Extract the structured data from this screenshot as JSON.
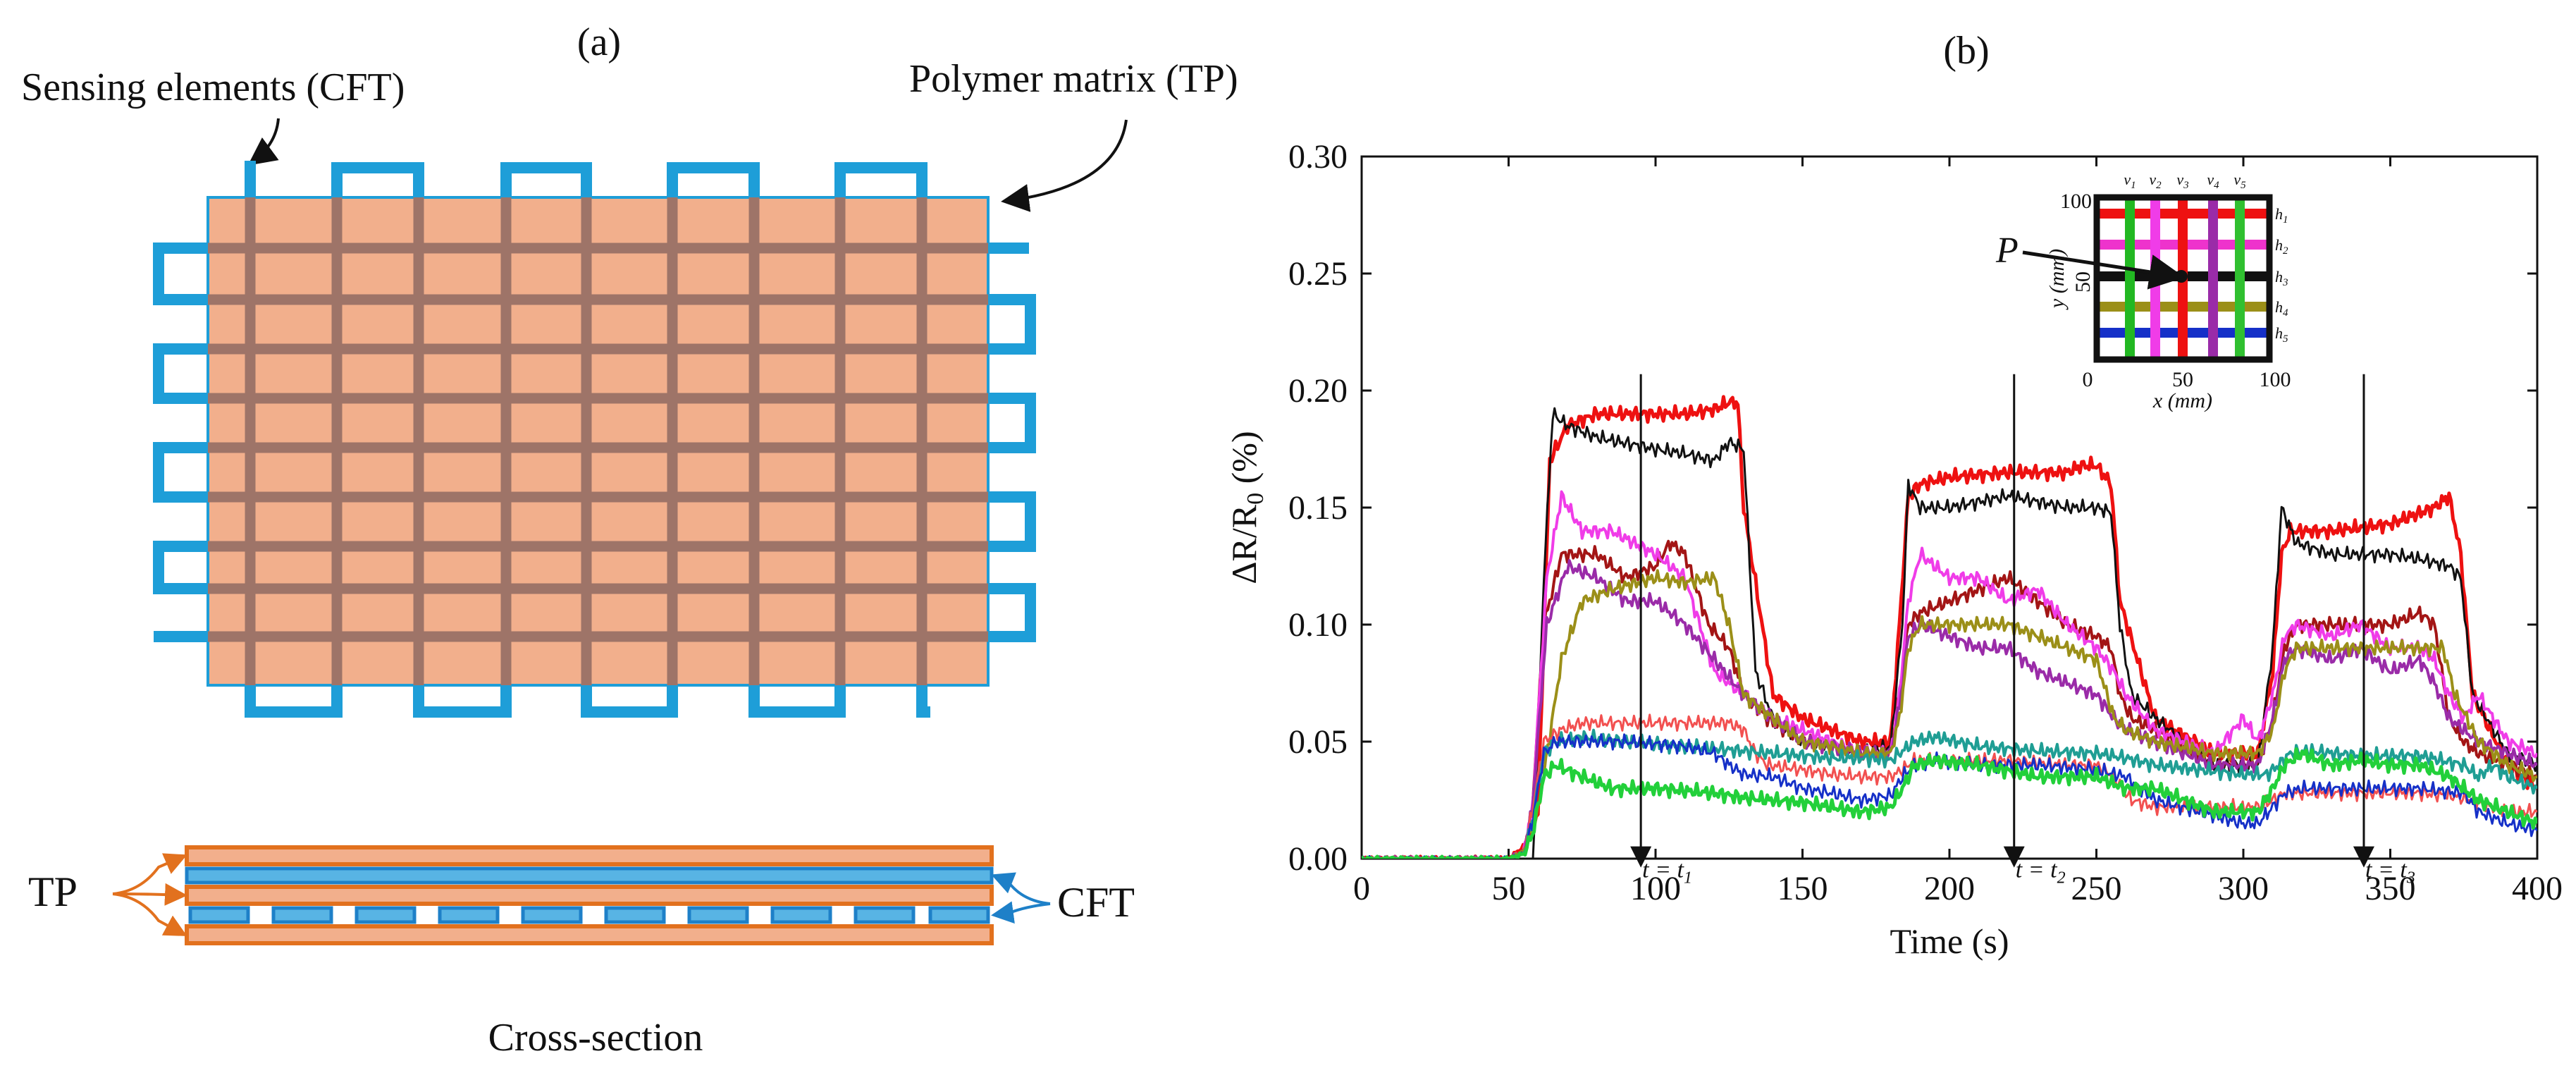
{
  "panel_a": {
    "label": "(a)",
    "annotation_cft": "Sensing elements (CFT)",
    "annotation_tp": "Polymer matrix (TP)",
    "cross_section_caption": "Cross-section",
    "cross_section_tp_label": "TP",
    "cross_section_cft_label": "CFT",
    "colors": {
      "matrix": "#F2AF8C",
      "cft": "#1E9ED8",
      "embedded_cft": "#9E7468",
      "tp_layer": "#E2711E"
    }
  },
  "panel_b": {
    "label": "(b)",
    "inset": {
      "pointer_label": "P",
      "v_labels": [
        {
          "base": "v",
          "sub": "1"
        },
        {
          "base": "v",
          "sub": "2"
        },
        {
          "base": "v",
          "sub": "3"
        },
        {
          "base": "v",
          "sub": "4"
        },
        {
          "base": "v",
          "sub": "5"
        }
      ],
      "h_labels": [
        {
          "base": "h",
          "sub": "1"
        },
        {
          "base": "h",
          "sub": "2"
        },
        {
          "base": "h",
          "sub": "3"
        },
        {
          "base": "h",
          "sub": "4"
        },
        {
          "base": "h",
          "sub": "5"
        }
      ],
      "x_ticks": [
        "0",
        "50",
        "100"
      ],
      "y_ticks": [
        "100",
        "50"
      ],
      "xlabel": "x (mm)",
      "ylabel": "y (mm)",
      "v_colors": [
        "#22B822",
        "#F03CE8",
        "#EE1111",
        "#9A2BA8",
        "#30C030"
      ],
      "h_colors": [
        "#EE1111",
        "#EE33CC",
        "#111111",
        "#9B8F18",
        "#1530C8"
      ]
    }
  },
  "chart_data": {
    "type": "line",
    "title": "",
    "xlabel": "Time (s)",
    "ylabel_main": "ΔR/R",
    "ylabel_sub": "0",
    "ylabel_suffix": " (%)",
    "xlim": [
      0,
      400
    ],
    "ylim": [
      0,
      0.3
    ],
    "xticks": [
      "0",
      "50",
      "100",
      "150",
      "200",
      "250",
      "300",
      "350",
      "400"
    ],
    "yticks": [
      "0.00",
      "0.05",
      "0.10",
      "0.15",
      "0.20",
      "0.25",
      "0.30"
    ],
    "annotations": [
      {
        "label": "t = t",
        "sub": "1",
        "x": 95
      },
      {
        "label": "t = t",
        "sub": "2",
        "x": 222
      },
      {
        "label": "t = t",
        "sub": "3",
        "x": 341
      }
    ],
    "series": [
      {
        "name": "red",
        "color": "#EE1111",
        "width": 5,
        "x": [
          0,
          50,
          55,
          60,
          64,
          70,
          80,
          100,
          110,
          120,
          125,
          128,
          130,
          140,
          150,
          160,
          170,
          180,
          183,
          186,
          190,
          200,
          220,
          240,
          245,
          250,
          255,
          258,
          270,
          290,
          305,
          310,
          313,
          316,
          320,
          330,
          350,
          365,
          370,
          374,
          378,
          390,
          400
        ],
        "y": [
          0,
          0,
          0.005,
          0.02,
          0.17,
          0.185,
          0.19,
          0.19,
          0.19,
          0.192,
          0.195,
          0.195,
          0.15,
          0.07,
          0.06,
          0.055,
          0.05,
          0.05,
          0.1,
          0.155,
          0.16,
          0.163,
          0.165,
          0.165,
          0.168,
          0.168,
          0.16,
          0.11,
          0.06,
          0.045,
          0.045,
          0.08,
          0.13,
          0.14,
          0.14,
          0.14,
          0.143,
          0.15,
          0.155,
          0.13,
          0.07,
          0.04,
          0.03
        ]
      },
      {
        "name": "black",
        "color": "#111111",
        "width": 3,
        "x": [
          0,
          50,
          55,
          58,
          62,
          65,
          70,
          80,
          100,
          110,
          120,
          125,
          130,
          134,
          140,
          150,
          170,
          180,
          184,
          186,
          190,
          200,
          220,
          240,
          250,
          255,
          258,
          262,
          270,
          290,
          305,
          310,
          313,
          318,
          330,
          350,
          360,
          370,
          374,
          378,
          390,
          400
        ],
        "y": [
          0,
          0,
          -0.002,
          -0.01,
          0.12,
          0.19,
          0.185,
          0.18,
          0.175,
          0.173,
          0.17,
          0.178,
          0.175,
          0.08,
          0.06,
          0.05,
          0.045,
          0.048,
          0.1,
          0.16,
          0.15,
          0.15,
          0.155,
          0.15,
          0.15,
          0.148,
          0.1,
          0.07,
          0.06,
          0.04,
          0.04,
          0.09,
          0.15,
          0.135,
          0.13,
          0.13,
          0.128,
          0.125,
          0.12,
          0.07,
          0.045,
          0.04
        ]
      },
      {
        "name": "dark red",
        "color": "#A31515",
        "width": 4,
        "x": [
          0,
          50,
          55,
          58,
          62,
          68,
          80,
          90,
          100,
          105,
          110,
          118,
          125,
          130,
          138,
          150,
          160,
          170,
          180,
          183,
          186,
          190,
          200,
          210,
          220,
          230,
          240,
          250,
          255,
          258,
          262,
          270,
          290,
          305,
          310,
          314,
          318,
          330,
          340,
          350,
          360,
          365,
          370,
          375,
          380,
          390,
          400
        ],
        "y": [
          0,
          0,
          0.003,
          0.02,
          0.1,
          0.13,
          0.13,
          0.12,
          0.125,
          0.135,
          0.13,
          0.1,
          0.09,
          0.07,
          0.06,
          0.05,
          0.048,
          0.045,
          0.045,
          0.07,
          0.1,
          0.105,
          0.11,
          0.115,
          0.12,
          0.11,
          0.1,
          0.095,
          0.09,
          0.07,
          0.06,
          0.055,
          0.04,
          0.04,
          0.06,
          0.09,
          0.1,
          0.1,
          0.1,
          0.1,
          0.105,
          0.1,
          0.06,
          0.05,
          0.045,
          0.04,
          0.035
        ]
      },
      {
        "name": "magenta",
        "color": "#F03CE8",
        "width": 4,
        "x": [
          0,
          50,
          55,
          58,
          63,
          68,
          75,
          85,
          100,
          110,
          120,
          130,
          140,
          150,
          160,
          170,
          180,
          183,
          186,
          190,
          200,
          210,
          220,
          230,
          240,
          250,
          256,
          260,
          270,
          280,
          290,
          300,
          305,
          310,
          314,
          318,
          330,
          340,
          350,
          360,
          365,
          370,
          375,
          380,
          390,
          400
        ],
        "y": [
          0,
          0,
          0.003,
          0.02,
          0.12,
          0.155,
          0.14,
          0.14,
          0.13,
          0.12,
          0.08,
          0.07,
          0.06,
          0.055,
          0.05,
          0.045,
          0.045,
          0.07,
          0.11,
          0.13,
          0.12,
          0.12,
          0.11,
          0.115,
          0.1,
          0.09,
          0.08,
          0.07,
          0.055,
          0.05,
          0.045,
          0.06,
          0.05,
          0.07,
          0.095,
          0.1,
          0.095,
          0.1,
          0.09,
          0.09,
          0.085,
          0.07,
          0.06,
          0.07,
          0.05,
          0.045
        ]
      },
      {
        "name": "purple",
        "color": "#9A2BA8",
        "width": 4,
        "x": [
          0,
          50,
          55,
          58,
          63,
          70,
          80,
          90,
          100,
          110,
          120,
          130,
          140,
          150,
          160,
          170,
          180,
          183,
          186,
          190,
          200,
          210,
          220,
          230,
          240,
          250,
          256,
          260,
          270,
          290,
          305,
          310,
          314,
          318,
          330,
          340,
          350,
          360,
          365,
          370,
          380,
          390,
          400
        ],
        "y": [
          0,
          0,
          0.003,
          0.02,
          0.1,
          0.125,
          0.12,
          0.11,
          0.11,
          0.1,
          0.085,
          0.07,
          0.06,
          0.05,
          0.048,
          0.045,
          0.045,
          0.065,
          0.095,
          0.1,
          0.095,
          0.09,
          0.09,
          0.08,
          0.075,
          0.07,
          0.06,
          0.055,
          0.05,
          0.04,
          0.04,
          0.06,
          0.085,
          0.09,
          0.085,
          0.09,
          0.08,
          0.085,
          0.075,
          0.06,
          0.05,
          0.045,
          0.04
        ]
      },
      {
        "name": "olive",
        "color": "#9B8F18",
        "width": 4,
        "x": [
          0,
          50,
          55,
          60,
          68,
          75,
          85,
          100,
          110,
          120,
          125,
          130,
          140,
          150,
          160,
          170,
          180,
          183,
          186,
          190,
          200,
          210,
          220,
          230,
          240,
          250,
          256,
          260,
          270,
          290,
          305,
          310,
          314,
          318,
          330,
          340,
          350,
          360,
          368,
          372,
          380,
          390,
          400
        ],
        "y": [
          0,
          0,
          0.003,
          0.02,
          0.085,
          0.11,
          0.115,
          0.12,
          0.118,
          0.12,
          0.1,
          0.07,
          0.06,
          0.05,
          0.048,
          0.045,
          0.045,
          0.06,
          0.09,
          0.1,
          0.1,
          0.1,
          0.1,
          0.095,
          0.09,
          0.085,
          0.06,
          0.055,
          0.05,
          0.045,
          0.045,
          0.055,
          0.08,
          0.09,
          0.09,
          0.09,
          0.09,
          0.09,
          0.09,
          0.07,
          0.05,
          0.04,
          0.035
        ]
      },
      {
        "name": "light red",
        "color": "#F25050",
        "width": 3,
        "x": [
          0,
          50,
          55,
          58,
          62,
          68,
          75,
          90,
          110,
          125,
          130,
          134,
          138,
          150,
          160,
          170,
          180,
          184,
          188,
          200,
          220,
          240,
          250,
          256,
          262,
          270,
          290,
          305,
          310,
          314,
          320,
          340,
          360,
          370,
          378,
          385,
          390,
          400
        ],
        "y": [
          0,
          0,
          0.002,
          0.02,
          0.05,
          0.055,
          0.058,
          0.058,
          0.058,
          0.058,
          0.055,
          0.045,
          0.04,
          0.038,
          0.036,
          0.035,
          0.035,
          0.038,
          0.042,
          0.042,
          0.042,
          0.04,
          0.04,
          0.035,
          0.025,
          0.022,
          0.022,
          0.022,
          0.025,
          0.028,
          0.028,
          0.028,
          0.028,
          0.027,
          0.025,
          0.022,
          0.02,
          0.02
        ]
      },
      {
        "name": "teal",
        "color": "#1F9E94",
        "width": 4,
        "x": [
          0,
          50,
          55,
          58,
          62,
          66,
          75,
          90,
          110,
          130,
          140,
          150,
          160,
          170,
          180,
          184,
          188,
          195,
          210,
          230,
          250,
          260,
          270,
          285,
          300,
          308,
          312,
          316,
          322,
          340,
          360,
          375,
          380,
          385,
          390,
          400
        ],
        "y": [
          0,
          0,
          0.002,
          0.015,
          0.045,
          0.05,
          0.052,
          0.05,
          0.048,
          0.046,
          0.045,
          0.044,
          0.043,
          0.043,
          0.042,
          0.046,
          0.05,
          0.052,
          0.048,
          0.046,
          0.045,
          0.043,
          0.04,
          0.038,
          0.036,
          0.036,
          0.04,
          0.045,
          0.046,
          0.044,
          0.044,
          0.04,
          0.035,
          0.04,
          0.035,
          0.03
        ]
      },
      {
        "name": "blue",
        "color": "#1530C8",
        "width": 3,
        "x": [
          0,
          50,
          55,
          58,
          62,
          66,
          75,
          90,
          110,
          120,
          125,
          130,
          140,
          150,
          160,
          170,
          180,
          184,
          188,
          195,
          210,
          230,
          250,
          260,
          270,
          285,
          300,
          305,
          310,
          314,
          320,
          340,
          360,
          375,
          380,
          390,
          400
        ],
        "y": [
          0,
          0,
          0.002,
          0.015,
          0.045,
          0.05,
          0.05,
          0.05,
          0.048,
          0.045,
          0.04,
          0.036,
          0.035,
          0.03,
          0.028,
          0.025,
          0.027,
          0.035,
          0.04,
          0.042,
          0.04,
          0.04,
          0.038,
          0.035,
          0.025,
          0.02,
          0.015,
          0.015,
          0.022,
          0.028,
          0.03,
          0.03,
          0.03,
          0.028,
          0.02,
          0.015,
          0.012
        ]
      },
      {
        "name": "green",
        "color": "#22D03A",
        "width": 5,
        "x": [
          0,
          50,
          55,
          58,
          62,
          66,
          75,
          85,
          100,
          120,
          130,
          140,
          150,
          160,
          170,
          180,
          184,
          188,
          195,
          210,
          230,
          250,
          260,
          270,
          280,
          290,
          300,
          305,
          310,
          314,
          320,
          330,
          340,
          350,
          360,
          370,
          375,
          380,
          390,
          400
        ],
        "y": [
          0,
          0,
          0.002,
          0.01,
          0.035,
          0.04,
          0.035,
          0.03,
          0.03,
          0.028,
          0.026,
          0.025,
          0.024,
          0.022,
          0.02,
          0.022,
          0.03,
          0.04,
          0.042,
          0.04,
          0.035,
          0.035,
          0.03,
          0.03,
          0.025,
          0.02,
          0.02,
          0.02,
          0.03,
          0.04,
          0.045,
          0.04,
          0.042,
          0.04,
          0.04,
          0.035,
          0.03,
          0.025,
          0.02,
          0.015
        ]
      }
    ]
  }
}
